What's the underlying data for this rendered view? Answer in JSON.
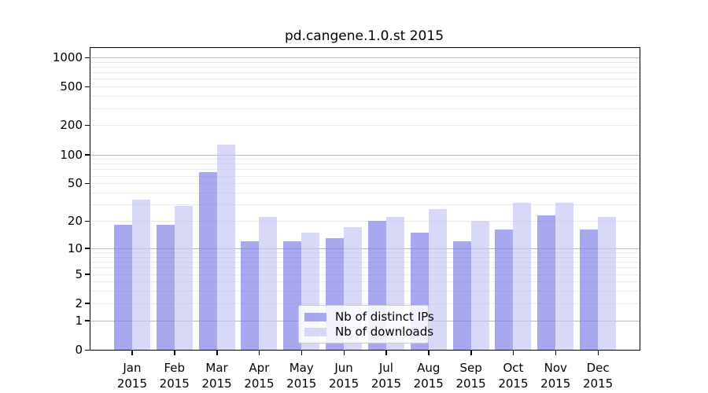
{
  "title": "pd.cangene.1.0.st 2015",
  "colors": {
    "bar_distinct_ips": "#7a7ae8",
    "bar_downloads": "#c3c3f4",
    "bar_alpha": 0.65,
    "grid_major": "#b8b8b8",
    "grid_minor": "#ebebeb",
    "axis": "#000000",
    "legend_border": "#cccccc"
  },
  "chart_data": {
    "type": "bar",
    "title": "pd.cangene.1.0.st 2015",
    "categories": [
      "Jan",
      "Feb",
      "Mar",
      "Apr",
      "May",
      "Jun",
      "Jul",
      "Aug",
      "Sep",
      "Oct",
      "Nov",
      "Dec"
    ],
    "category_year": "2015",
    "series": [
      {
        "name": "Nb of distinct IPs",
        "values": [
          18,
          18,
          66,
          12,
          12,
          13,
          20,
          15,
          12,
          16,
          23,
          16
        ]
      },
      {
        "name": "Nb of downloads",
        "values": [
          34,
          29,
          127,
          22,
          15,
          17,
          22,
          27,
          20,
          31,
          31,
          22
        ]
      }
    ],
    "yscale": "log1p",
    "yticks": [
      0,
      1,
      2,
      5,
      10,
      20,
      50,
      100,
      200,
      500,
      1000
    ],
    "ylim": [
      0,
      1000
    ],
    "xlabel": "",
    "ylabel": "",
    "grid": true,
    "legend_position": "inside-bottom-center"
  }
}
